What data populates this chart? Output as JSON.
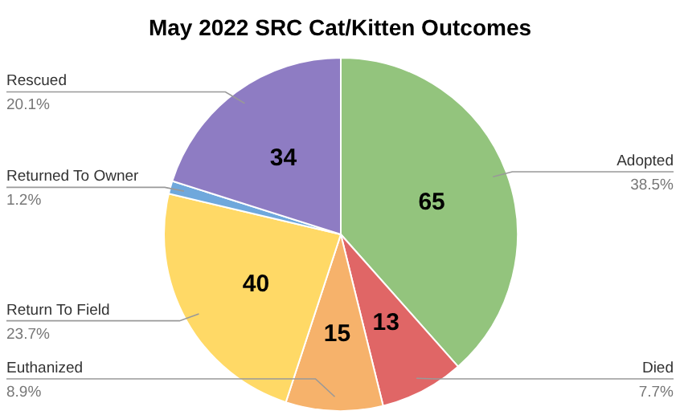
{
  "chart_data": {
    "type": "pie",
    "title": "May 2022 SRC Cat/Kitten Outcomes",
    "categories": [
      "Adopted",
      "Died",
      "Euthanized",
      "Return To Field",
      "Returned To Owner",
      "Rescued"
    ],
    "values": [
      65,
      13,
      15,
      40,
      2,
      34
    ],
    "colors": [
      "#93c47d",
      "#e06666",
      "#f6b26b",
      "#ffd966",
      "#6fa8dc",
      "#8e7cc3"
    ],
    "value_labels": [
      "65",
      "13",
      "15",
      "40",
      null,
      "34"
    ],
    "annotations": [
      "38.5%",
      "7.7%",
      "8.9%",
      "23.7%",
      "1.2%",
      "20.1%"
    ]
  }
}
